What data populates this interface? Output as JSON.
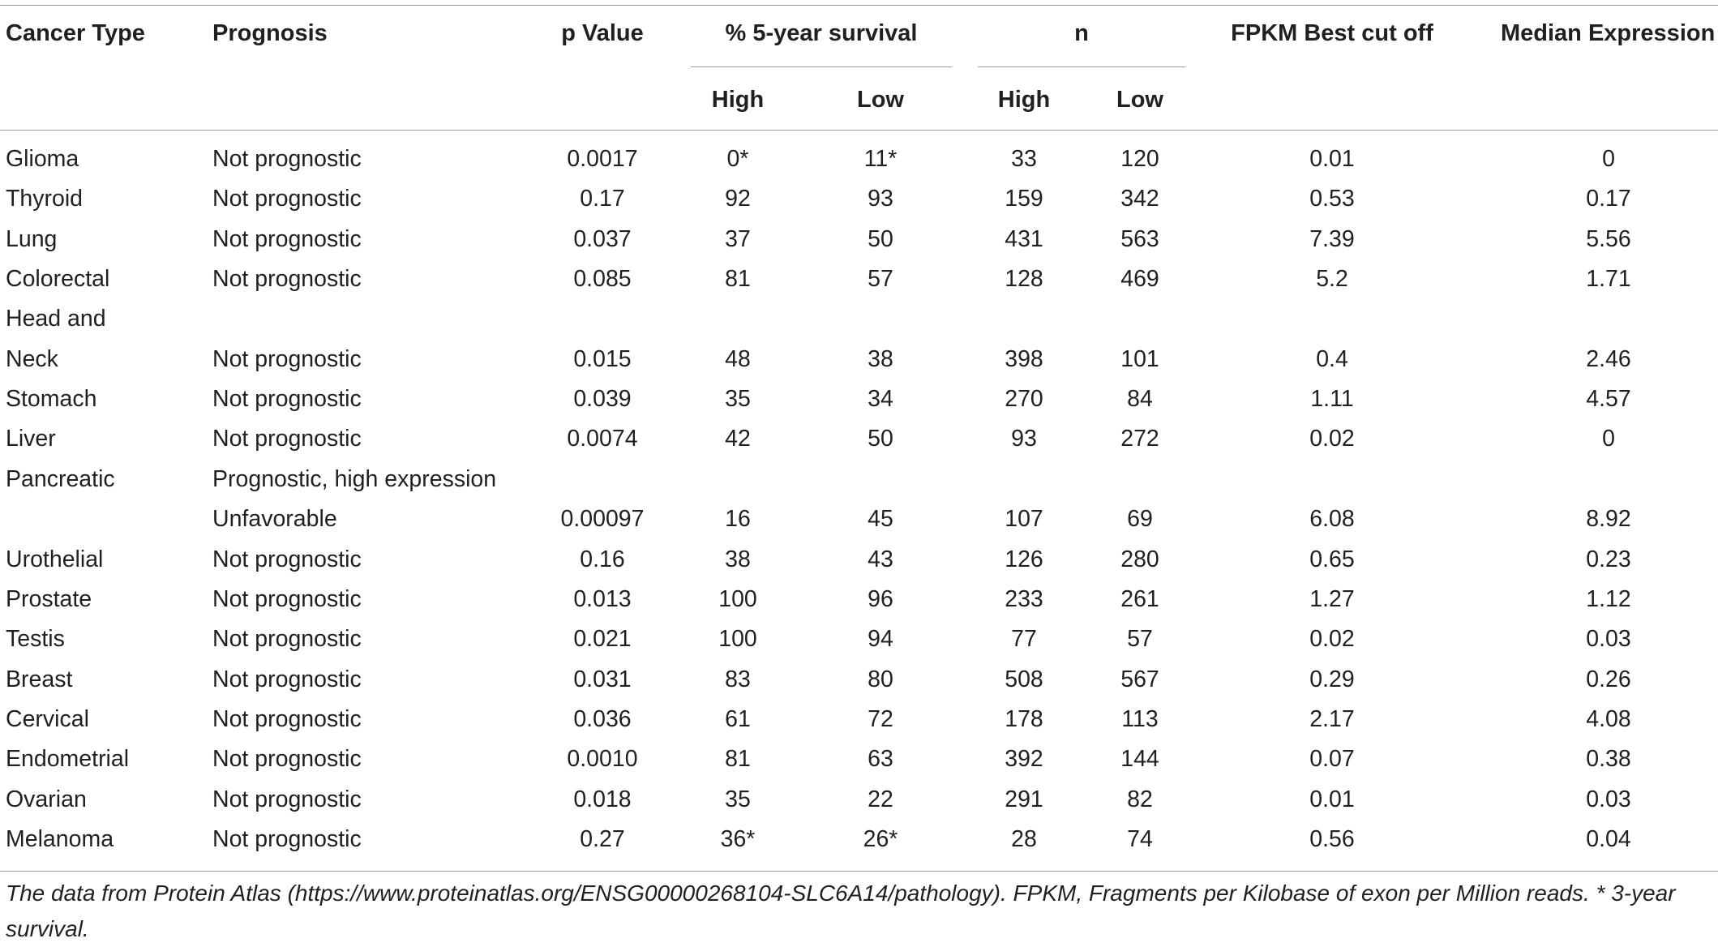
{
  "table": {
    "headers": {
      "cancer_type": "Cancer Type",
      "prognosis": "Prognosis",
      "p_value": "p Value",
      "survival": "% 5-year survival",
      "survival_high": "High",
      "survival_low": "Low",
      "n": "n",
      "n_high": "High",
      "n_low": "Low",
      "fpkm": "FPKM Best cut off",
      "median": "Median Expression"
    },
    "rows": [
      {
        "cancer": "Glioma",
        "prognosis": "Not prognostic",
        "p": "0.0017",
        "surv_high": "0*",
        "surv_low": "11*",
        "n_high": "33",
        "n_low": "120",
        "fpkm": "0.01",
        "median": "0"
      },
      {
        "cancer": "Thyroid",
        "prognosis": "Not prognostic",
        "p": "0.17",
        "surv_high": "92",
        "surv_low": "93",
        "n_high": "159",
        "n_low": "342",
        "fpkm": "0.53",
        "median": "0.17"
      },
      {
        "cancer": "Lung",
        "prognosis": "Not prognostic",
        "p": "0.037",
        "surv_high": "37",
        "surv_low": "50",
        "n_high": "431",
        "n_low": "563",
        "fpkm": "7.39",
        "median": "5.56"
      },
      {
        "cancer": "Colorectal",
        "prognosis": "Not prognostic",
        "p": "0.085",
        "surv_high": "81",
        "surv_low": "57",
        "n_high": "128",
        "n_low": "469",
        "fpkm": "5.2",
        "median": "1.71"
      },
      {
        "cancer": "Head and",
        "prognosis": "",
        "p": "",
        "surv_high": "",
        "surv_low": "",
        "n_high": "",
        "n_low": "",
        "fpkm": "",
        "median": ""
      },
      {
        "cancer": "Neck",
        "prognosis": "Not prognostic",
        "p": "0.015",
        "surv_high": "48",
        "surv_low": "38",
        "n_high": "398",
        "n_low": "101",
        "fpkm": "0.4",
        "median": "2.46"
      },
      {
        "cancer": "Stomach",
        "prognosis": "Not prognostic",
        "p": "0.039",
        "surv_high": "35",
        "surv_low": "34",
        "n_high": "270",
        "n_low": "84",
        "fpkm": "1.11",
        "median": "4.57"
      },
      {
        "cancer": "Liver",
        "prognosis": "Not prognostic",
        "p": "0.0074",
        "surv_high": "42",
        "surv_low": "50",
        "n_high": "93",
        "n_low": "272",
        "fpkm": "0.02",
        "median": "0"
      },
      {
        "cancer": "Pancreatic",
        "prognosis": "Prognostic, high expression",
        "p": "",
        "surv_high": "",
        "surv_low": "",
        "n_high": "",
        "n_low": "",
        "fpkm": "",
        "median": ""
      },
      {
        "cancer": "",
        "prognosis": "Unfavorable",
        "p": "0.00097",
        "surv_high": "16",
        "surv_low": "45",
        "n_high": "107",
        "n_low": "69",
        "fpkm": "6.08",
        "median": "8.92"
      },
      {
        "cancer": "Urothelial",
        "prognosis": "Not prognostic",
        "p": "0.16",
        "surv_high": "38",
        "surv_low": "43",
        "n_high": "126",
        "n_low": "280",
        "fpkm": "0.65",
        "median": "0.23"
      },
      {
        "cancer": "Prostate",
        "prognosis": "Not prognostic",
        "p": "0.013",
        "surv_high": "100",
        "surv_low": "96",
        "n_high": "233",
        "n_low": "261",
        "fpkm": "1.27",
        "median": "1.12"
      },
      {
        "cancer": "Testis",
        "prognosis": "Not prognostic",
        "p": "0.021",
        "surv_high": "100",
        "surv_low": "94",
        "n_high": "77",
        "n_low": "57",
        "fpkm": "0.02",
        "median": "0.03"
      },
      {
        "cancer": "Breast",
        "prognosis": "Not prognostic",
        "p": "0.031",
        "surv_high": "83",
        "surv_low": "80",
        "n_high": "508",
        "n_low": "567",
        "fpkm": "0.29",
        "median": "0.26"
      },
      {
        "cancer": "Cervical",
        "prognosis": "Not prognostic",
        "p": "0.036",
        "surv_high": "61",
        "surv_low": "72",
        "n_high": "178",
        "n_low": "113",
        "fpkm": "2.17",
        "median": "4.08"
      },
      {
        "cancer": "Endometrial",
        "prognosis": "Not prognostic",
        "p": "0.0010",
        "surv_high": "81",
        "surv_low": "63",
        "n_high": "392",
        "n_low": "144",
        "fpkm": "0.07",
        "median": "0.38"
      },
      {
        "cancer": "Ovarian",
        "prognosis": "Not prognostic",
        "p": "0.018",
        "surv_high": "35",
        "surv_low": "22",
        "n_high": "291",
        "n_low": "82",
        "fpkm": "0.01",
        "median": "0.03"
      },
      {
        "cancer": "Melanoma",
        "prognosis": "Not prognostic",
        "p": "0.27",
        "surv_high": "36*",
        "surv_low": "26*",
        "n_high": "28",
        "n_low": "74",
        "fpkm": "0.56",
        "median": "0.04"
      }
    ]
  },
  "footnote": "The data from Protein Atlas (https://www.proteinatlas.org/ENSG00000268104-SLC6A14/pathology). FPKM, Fragments per Kilobase of exon per Million reads. * 3-year survival."
}
